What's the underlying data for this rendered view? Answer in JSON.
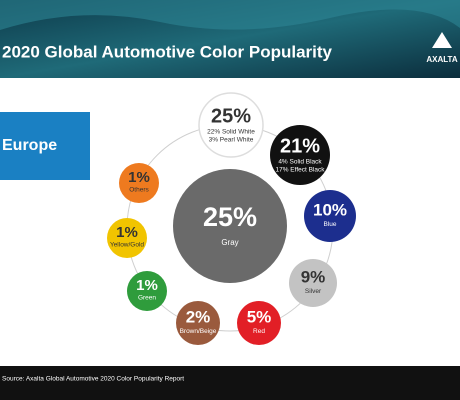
{
  "header": {
    "title": "2020 Global Automotive Color Popularity",
    "logo": "AXALTA"
  },
  "region": "Europe",
  "main": {
    "percent": "25%",
    "label": "Gray",
    "color": "#6a6a6a"
  },
  "colors": [
    {
      "percent": "25%",
      "lines": [
        "22% Solid White",
        "3% Pearl White"
      ],
      "color": "#ffffff"
    },
    {
      "percent": "21%",
      "lines": [
        "4% Solid Black",
        "17% Effect Black"
      ],
      "color": "#111111"
    },
    {
      "percent": "10%",
      "lines": [
        "Blue"
      ],
      "color": "#1c2e8e"
    },
    {
      "percent": "9%",
      "lines": [
        "Silver"
      ],
      "color": "#c3c3c3"
    },
    {
      "percent": "5%",
      "lines": [
        "Red"
      ],
      "color": "#e21f26"
    },
    {
      "percent": "2%",
      "lines": [
        "Brown/Beige"
      ],
      "color": "#9a5a3d"
    },
    {
      "percent": "1%",
      "lines": [
        "Green"
      ],
      "color": "#2f9c3c"
    },
    {
      "percent": "1%",
      "lines": [
        "Yellow/Gold"
      ],
      "color": "#f1c400"
    },
    {
      "percent": "1%",
      "lines": [
        "Others"
      ],
      "color": "#ee7a1f"
    }
  ],
  "footer": {
    "source": "Source: Axalta Global Automotive 2020 Color Popularity Report"
  }
}
